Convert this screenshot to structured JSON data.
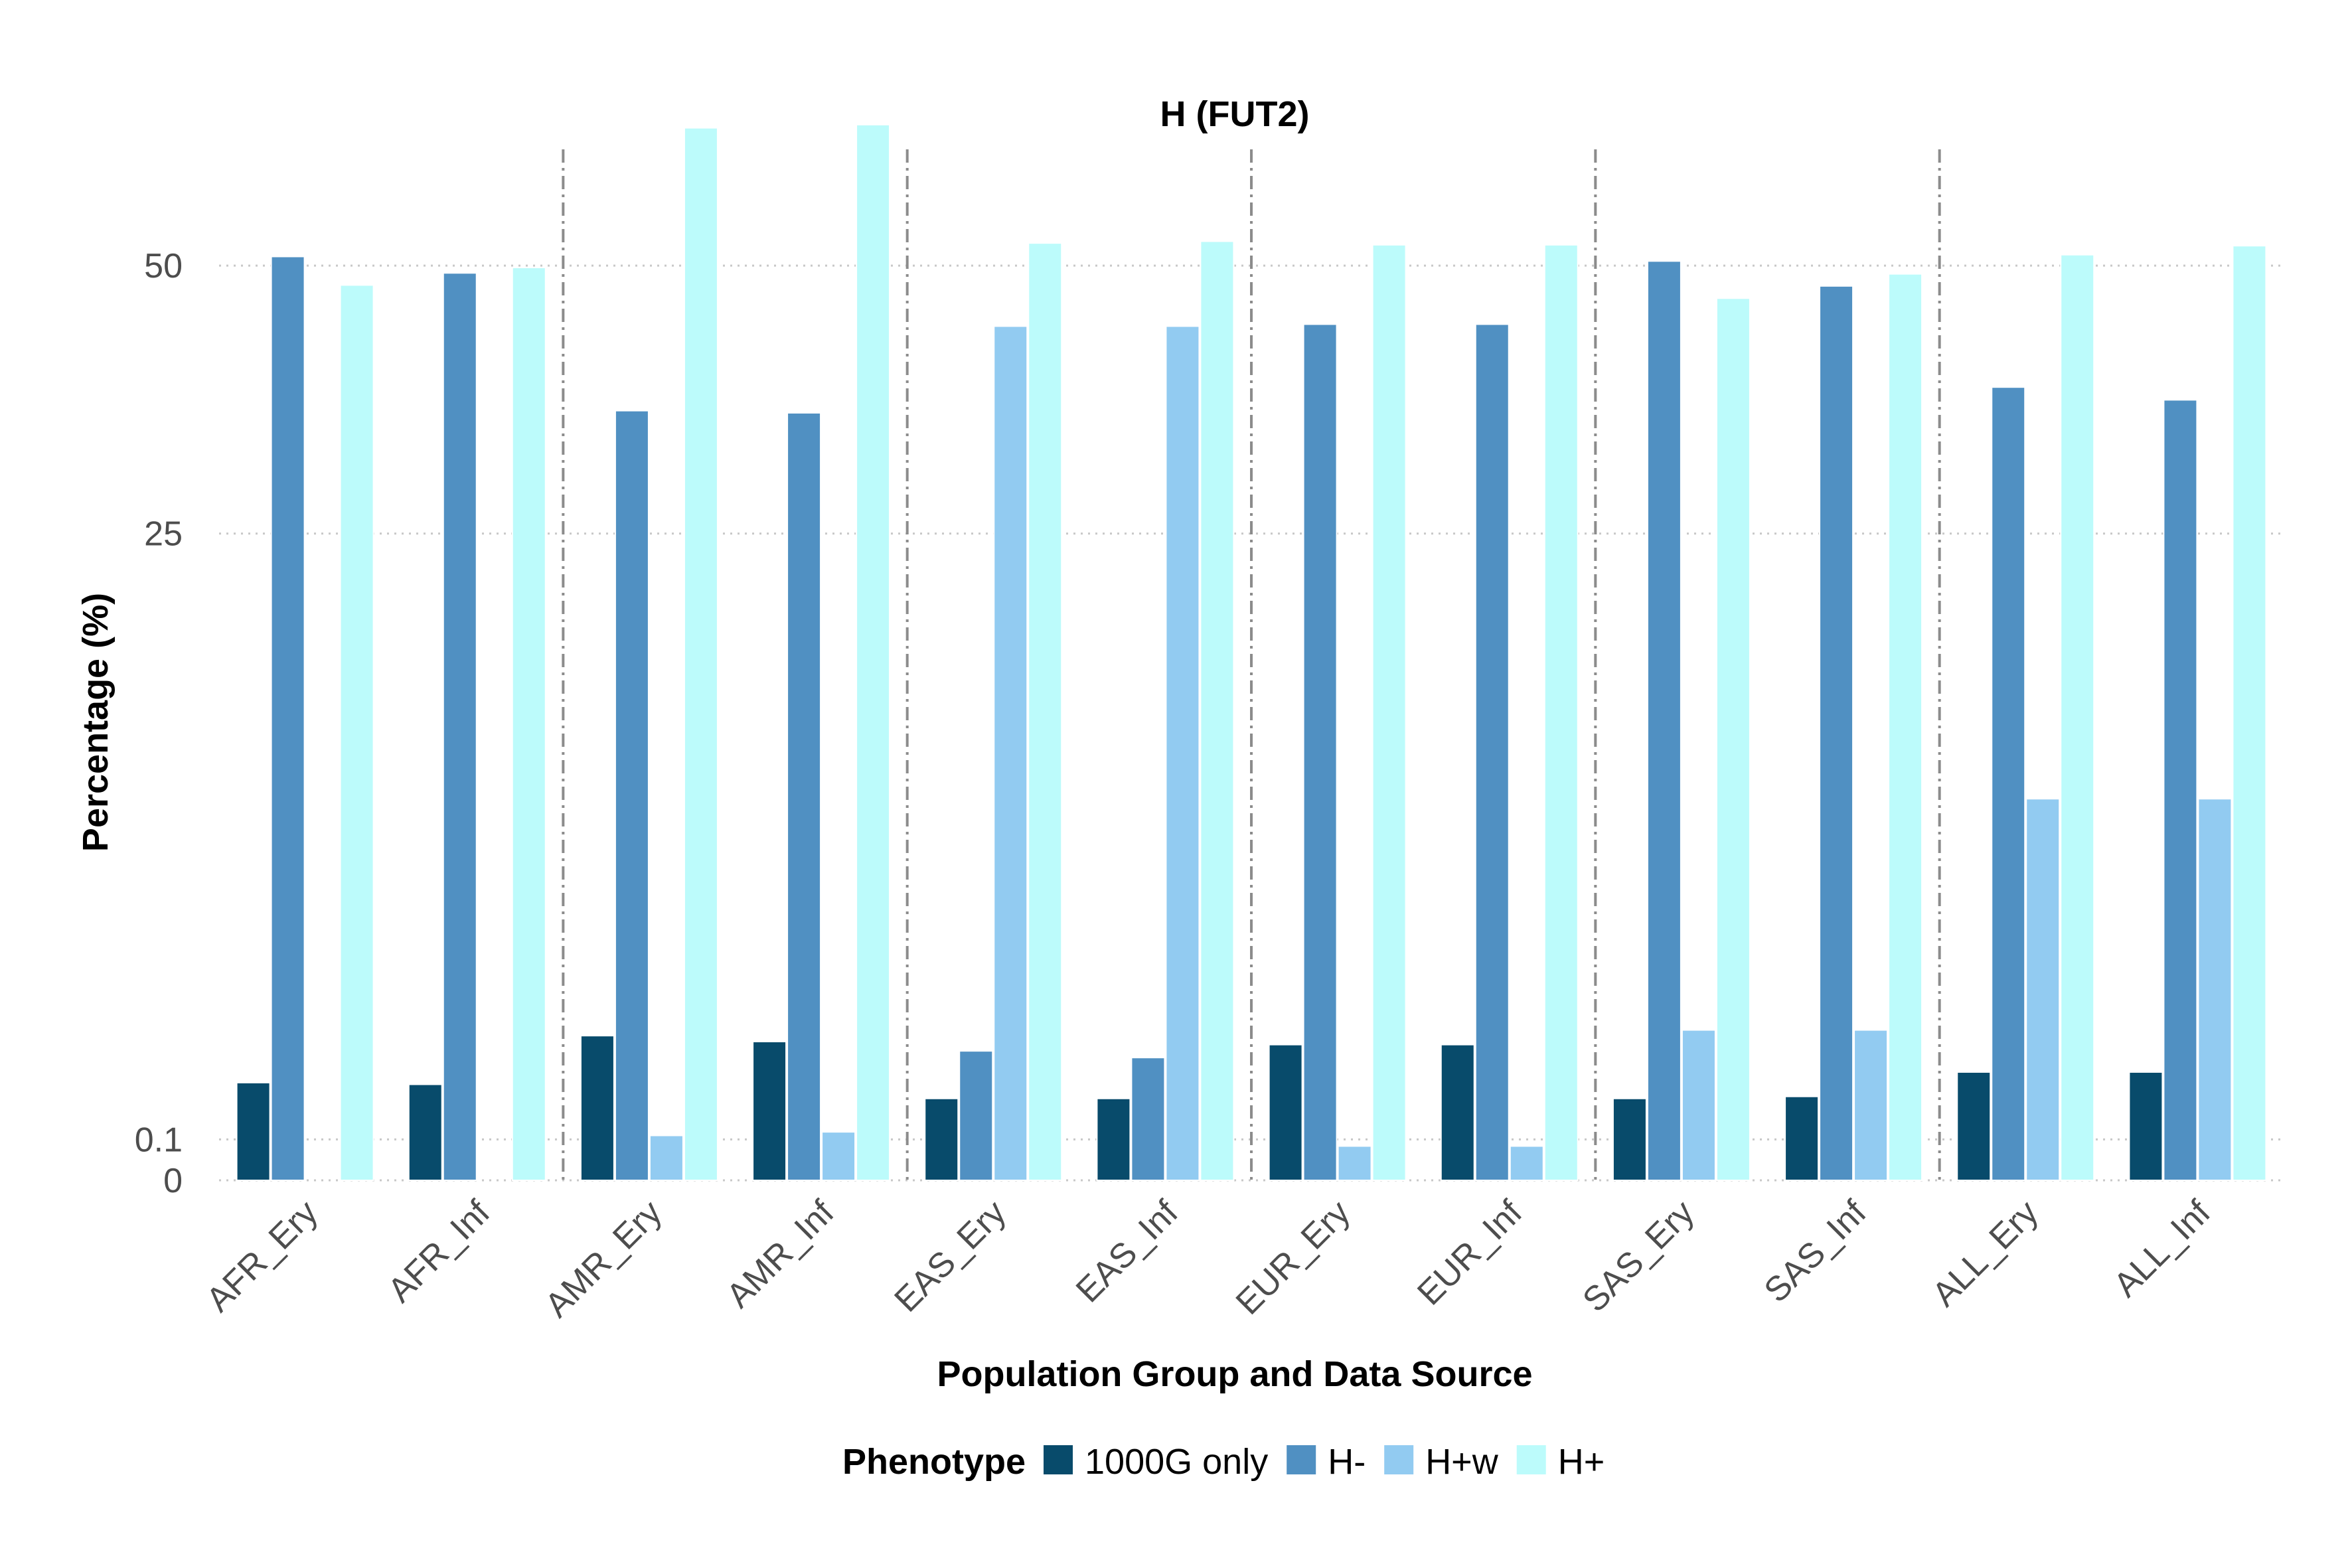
{
  "chart_data": {
    "type": "bar",
    "title": "H (FUT2)",
    "xlabel": "Population Group and Data Source",
    "ylabel": "Percentage (%)",
    "y_scale": "pseudo-log (square-root style)",
    "y_ticks": [
      0,
      0.1,
      25,
      50
    ],
    "y_tick_labels": [
      "0",
      "0.1",
      "25",
      "50"
    ],
    "ylim": [
      0,
      66
    ],
    "grid": true,
    "legend_position": "bottom",
    "legend_title": "Phenotype",
    "categories": [
      "AFR_Ery",
      "AFR_Inf",
      "AMR_Ery",
      "AMR_Inf",
      "EAS_Ery",
      "EAS_Inf",
      "EUR_Ery",
      "EUR_Inf",
      "SAS_Ery",
      "SAS_Inf",
      "ALL_Ery",
      "ALL_Inf"
    ],
    "group_separators_after": [
      "AFR_Inf",
      "AMR_Inf",
      "EAS_Inf",
      "EUR_Inf",
      "SAS_Inf"
    ],
    "series": [
      {
        "name": "1000G only",
        "color": "#084B6B",
        "values": [
          0.57,
          0.55,
          1.25,
          1.15,
          0.4,
          0.4,
          1.1,
          1.1,
          0.4,
          0.42,
          0.7,
          0.7
        ]
      },
      {
        "name": "H-",
        "color": "#5090C2",
        "values": [
          51.0,
          49.2,
          35.4,
          35.2,
          1.0,
          0.9,
          43.8,
          43.8,
          50.5,
          47.8,
          37.6,
          36.4
        ]
      },
      {
        "name": "H+w",
        "color": "#92CBF1",
        "values": [
          null,
          null,
          0.12,
          0.14,
          43.6,
          43.6,
          0.07,
          0.07,
          1.35,
          1.35,
          8.7,
          8.7
        ]
      },
      {
        "name": "H+",
        "color": "#BCFBFB",
        "values": [
          47.9,
          49.8,
          66.2,
          66.6,
          52.5,
          52.7,
          52.3,
          52.3,
          46.5,
          49.1,
          51.2,
          52.2
        ]
      }
    ]
  }
}
